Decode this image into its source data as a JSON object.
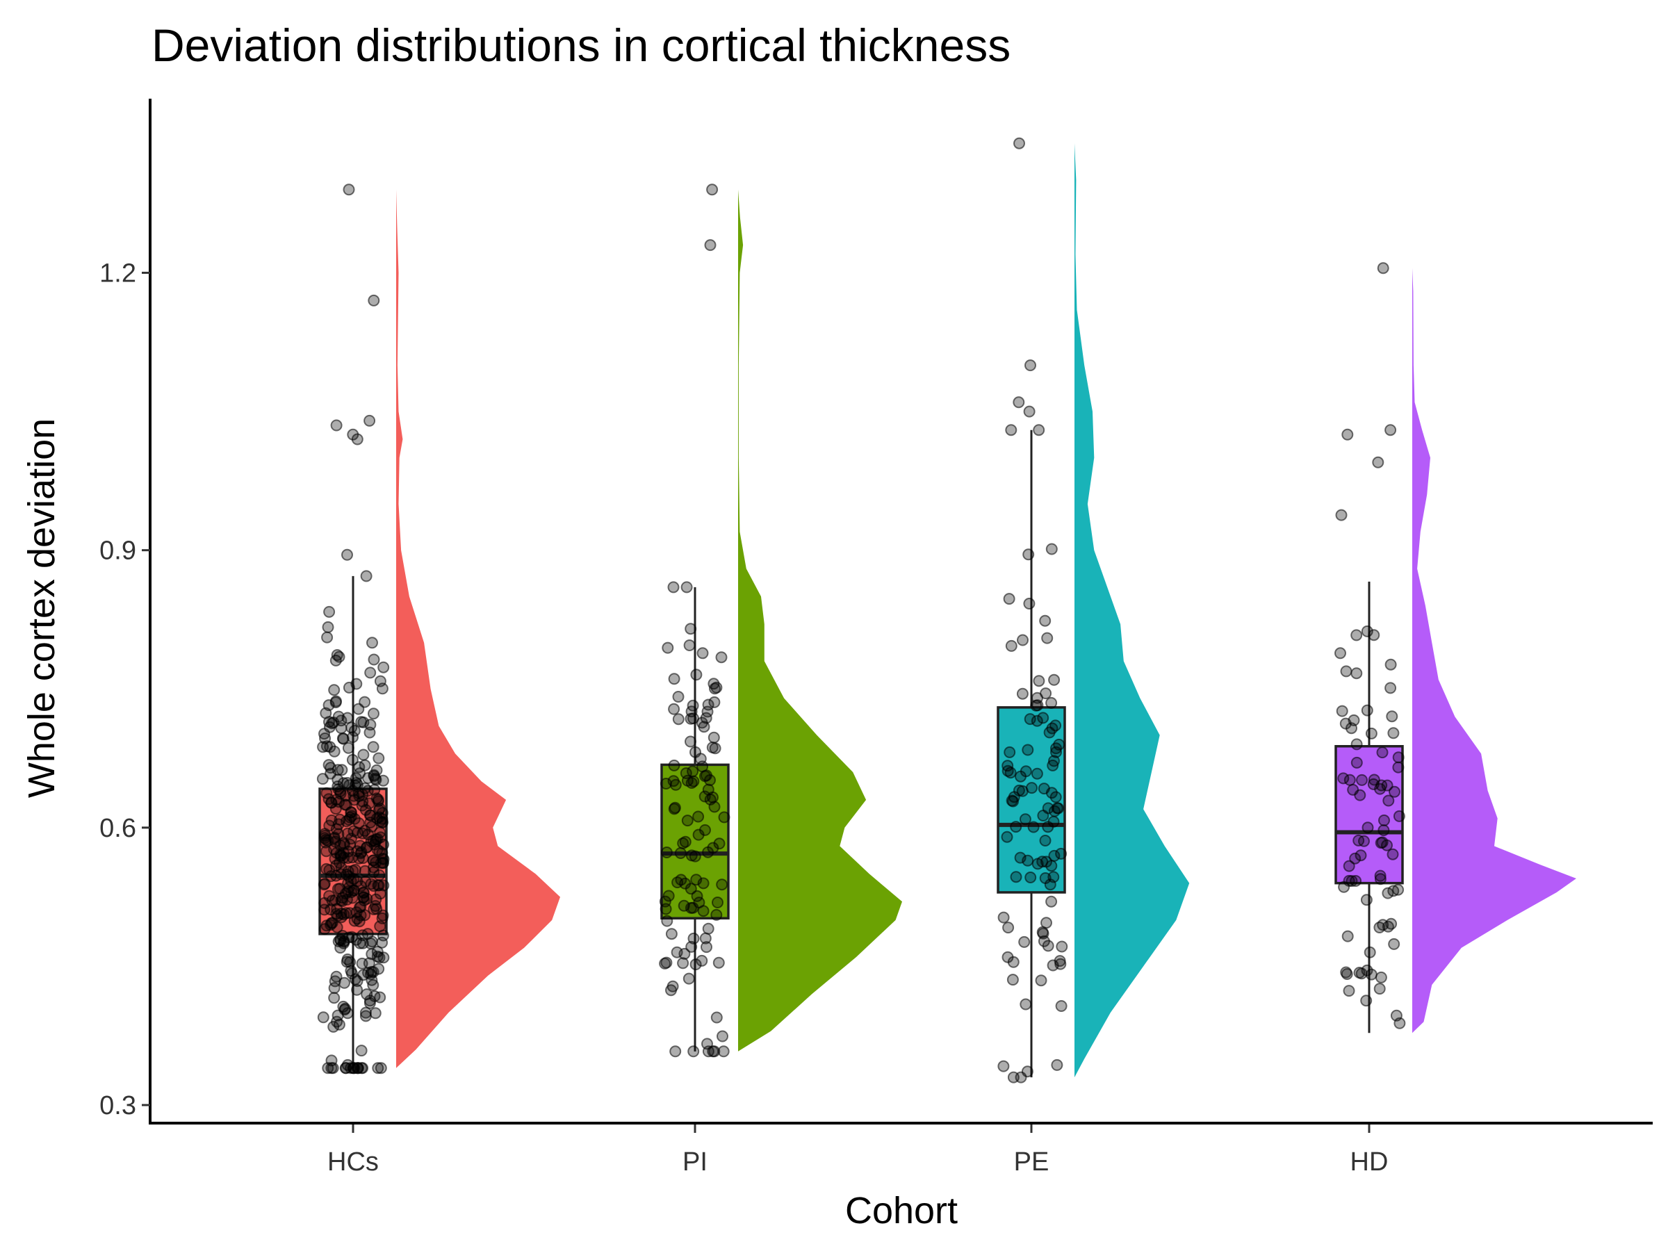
{
  "chart_data": {
    "type": "raincloud",
    "title": "Deviation distributions in cortical thickness",
    "xlabel": "Cohort",
    "ylabel": "Whole cortex deviation",
    "ylim": [
      0.282,
      1.362
    ],
    "yticks": [
      0.3,
      0.6,
      0.9,
      1.2
    ],
    "ytick_labels": [
      "0.3",
      "0.6",
      "0.9",
      "1.2"
    ],
    "grid": false,
    "legend": "none",
    "categories": [
      "HCs",
      "PI",
      "PE",
      "HD"
    ],
    "groups": [
      {
        "name": "HCs",
        "color": "#F35E5A",
        "box": {
          "whisker_low": 0.34,
          "q1": 0.485,
          "median": 0.548,
          "q3": 0.642,
          "whisker_high": 0.872
        },
        "density": [
          [
            0.34,
            0.0
          ],
          [
            0.36,
            0.12
          ],
          [
            0.4,
            0.32
          ],
          [
            0.44,
            0.56
          ],
          [
            0.47,
            0.78
          ],
          [
            0.5,
            0.95
          ],
          [
            0.525,
            1.0
          ],
          [
            0.55,
            0.85
          ],
          [
            0.58,
            0.62
          ],
          [
            0.6,
            0.59
          ],
          [
            0.63,
            0.67
          ],
          [
            0.65,
            0.52
          ],
          [
            0.68,
            0.36
          ],
          [
            0.71,
            0.26
          ],
          [
            0.75,
            0.21
          ],
          [
            0.8,
            0.17
          ],
          [
            0.85,
            0.08
          ],
          [
            0.9,
            0.03
          ],
          [
            0.95,
            0.015
          ],
          [
            1.0,
            0.02
          ],
          [
            1.02,
            0.04
          ],
          [
            1.05,
            0.015
          ],
          [
            1.1,
            0.008
          ],
          [
            1.2,
            0.015
          ],
          [
            1.25,
            0.006
          ],
          [
            1.29,
            0.0
          ]
        ],
        "outliers": [
          1.29,
          1.17,
          1.04,
          1.035,
          1.025,
          1.02,
          0.895
        ]
      },
      {
        "name": "PI",
        "color": "#6BA203",
        "box": {
          "whisker_low": 0.358,
          "q1": 0.502,
          "median": 0.572,
          "q3": 0.668,
          "whisker_high": 0.86
        },
        "density": [
          [
            0.358,
            0.0
          ],
          [
            0.38,
            0.2
          ],
          [
            0.42,
            0.45
          ],
          [
            0.46,
            0.72
          ],
          [
            0.5,
            0.96
          ],
          [
            0.52,
            1.0
          ],
          [
            0.55,
            0.8
          ],
          [
            0.58,
            0.62
          ],
          [
            0.6,
            0.65
          ],
          [
            0.63,
            0.78
          ],
          [
            0.66,
            0.7
          ],
          [
            0.7,
            0.48
          ],
          [
            0.74,
            0.28
          ],
          [
            0.78,
            0.16
          ],
          [
            0.82,
            0.16
          ],
          [
            0.85,
            0.14
          ],
          [
            0.88,
            0.05
          ],
          [
            0.92,
            0.01
          ],
          [
            1.0,
            0.004
          ],
          [
            1.1,
            0.004
          ],
          [
            1.2,
            0.01
          ],
          [
            1.23,
            0.03
          ],
          [
            1.26,
            0.012
          ],
          [
            1.29,
            0.0
          ]
        ],
        "outliers": [
          1.29,
          1.23
        ]
      },
      {
        "name": "PE",
        "color": "#19B3B8",
        "box": {
          "whisker_low": 0.33,
          "q1": 0.53,
          "median": 0.603,
          "q3": 0.73,
          "whisker_high": 1.03
        },
        "density": [
          [
            0.33,
            0.0
          ],
          [
            0.35,
            0.06
          ],
          [
            0.4,
            0.22
          ],
          [
            0.45,
            0.42
          ],
          [
            0.5,
            0.62
          ],
          [
            0.54,
            0.7
          ],
          [
            0.58,
            0.55
          ],
          [
            0.62,
            0.42
          ],
          [
            0.66,
            0.47
          ],
          [
            0.7,
            0.52
          ],
          [
            0.74,
            0.4
          ],
          [
            0.78,
            0.3
          ],
          [
            0.82,
            0.28
          ],
          [
            0.86,
            0.2
          ],
          [
            0.9,
            0.12
          ],
          [
            0.95,
            0.08
          ],
          [
            1.0,
            0.12
          ],
          [
            1.05,
            0.11
          ],
          [
            1.1,
            0.06
          ],
          [
            1.16,
            0.015
          ],
          [
            1.22,
            0.006
          ],
          [
            1.3,
            0.01
          ],
          [
            1.34,
            0.0
          ]
        ],
        "outliers": [
          1.34,
          1.1,
          1.06,
          1.05
        ]
      },
      {
        "name": "HD",
        "color": "#B55CF9",
        "box": {
          "whisker_low": 0.378,
          "q1": 0.54,
          "median": 0.595,
          "q3": 0.688,
          "whisker_high": 0.866
        },
        "density": [
          [
            0.378,
            0.0
          ],
          [
            0.39,
            0.07
          ],
          [
            0.43,
            0.12
          ],
          [
            0.47,
            0.3
          ],
          [
            0.5,
            0.58
          ],
          [
            0.53,
            0.88
          ],
          [
            0.545,
            1.0
          ],
          [
            0.56,
            0.78
          ],
          [
            0.58,
            0.5
          ],
          [
            0.61,
            0.52
          ],
          [
            0.64,
            0.46
          ],
          [
            0.68,
            0.42
          ],
          [
            0.72,
            0.26
          ],
          [
            0.76,
            0.16
          ],
          [
            0.8,
            0.12
          ],
          [
            0.84,
            0.08
          ],
          [
            0.88,
            0.03
          ],
          [
            0.92,
            0.05
          ],
          [
            0.96,
            0.09
          ],
          [
            1.0,
            0.11
          ],
          [
            1.03,
            0.06
          ],
          [
            1.06,
            0.015
          ],
          [
            1.1,
            0.008
          ],
          [
            1.18,
            0.006
          ],
          [
            1.205,
            0.0
          ]
        ],
        "outliers": [
          1.205,
          1.03,
          1.025,
          0.995,
          0.938
        ]
      }
    ]
  }
}
